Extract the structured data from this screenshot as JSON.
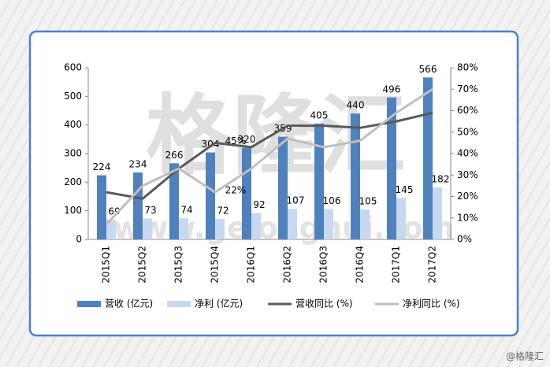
{
  "watermark": "格隆汇",
  "watermark_url": "www.gelonghui.com",
  "credit": "@格隆汇",
  "chart_data": {
    "type": "bar",
    "categories": [
      "2015Q1",
      "2015Q2",
      "2015Q3",
      "2015Q4",
      "2016Q1",
      "2016Q2",
      "2016Q3",
      "2016Q4",
      "2017Q1",
      "2017Q2"
    ],
    "series": [
      {
        "name": "营收 (亿元)",
        "type": "bar",
        "color": "#4f81bd",
        "values": [
          224,
          234,
          266,
          304,
          320,
          359,
          405,
          440,
          496,
          566
        ]
      },
      {
        "name": "净利 (亿元)",
        "type": "bar",
        "color": "#c6d9f1",
        "values": [
          69,
          73,
          74,
          72,
          92,
          107,
          106,
          105,
          145,
          182
        ]
      },
      {
        "name": "营收同比 (%)",
        "type": "line",
        "axis": "y2",
        "color": "#595959",
        "values": [
          22,
          19,
          33,
          45,
          43,
          53,
          53,
          52,
          55,
          59
        ],
        "value_labels": [
          null,
          null,
          null,
          "45%",
          null,
          null,
          null,
          null,
          null,
          null
        ]
      },
      {
        "name": "净利同比 (%)",
        "type": "line",
        "axis": "y2",
        "color": "#bfbfbf",
        "values": [
          7,
          25,
          33,
          22,
          33,
          47,
          43,
          46,
          59,
          70
        ],
        "value_labels": [
          null,
          null,
          null,
          "22%",
          null,
          null,
          null,
          null,
          null,
          null
        ]
      }
    ],
    "ylim": [
      0,
      600
    ],
    "yticks": [
      0,
      100,
      200,
      300,
      400,
      500,
      600
    ],
    "y2lim": [
      0,
      80
    ],
    "y2ticks": [
      {
        "value": 0,
        "label": "0%"
      },
      {
        "value": 10,
        "label": "10%"
      },
      {
        "value": 20,
        "label": "20%"
      },
      {
        "value": 30,
        "label": "30%"
      },
      {
        "value": 40,
        "label": "40%"
      },
      {
        "value": 50,
        "label": "50%"
      },
      {
        "value": 60,
        "label": "60%"
      },
      {
        "value": 70,
        "label": "70%"
      },
      {
        "value": 80,
        "label": "80%"
      }
    ],
    "legend": "bottom"
  }
}
